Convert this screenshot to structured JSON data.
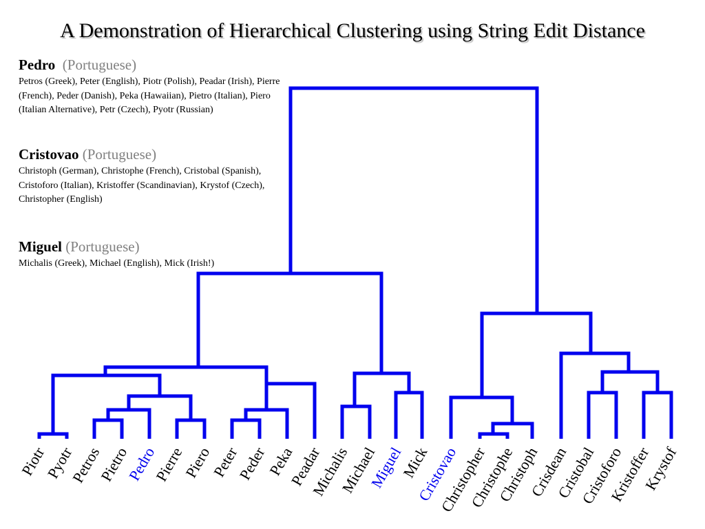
{
  "title": "A Demonstration of Hierarchical Clustering using String Edit Distance",
  "groups": [
    {
      "name": "Pedro",
      "language": "(Portuguese)",
      "variants": "Petros (Greek), Peter  (English), Piotr  (Polish), Peadar (Irish), Pierre (French), Peder  (Danish), Peka (Hawaiian), Pietro (Italian), Piero (Italian Alternative), Petr (Czech), Pyotr (Russian)"
    },
    {
      "name": "Cristovao",
      "language": "(Portuguese)",
      "variants": "Christoph (German), Christophe (French), Cristobal (Spanish), Cristoforo (Italian), Kristoffer (Scandinavian), Krystof (Czech), Christopher (English)"
    },
    {
      "name": "Miguel",
      "language": "(Portuguese)",
      "variants": "Michalis (Greek), Michael (English), Mick (Irish!)"
    }
  ],
  "leaves": [
    "Piotr",
    "Pyotr",
    "Petros",
    "Pietro",
    "Pedro",
    "Pierre",
    "Piero",
    "Peter",
    "Peder",
    "Peka",
    "Peadar",
    "Michalis",
    "Michael",
    "Miguel",
    "Mick",
    "Cristovao",
    "Christopher",
    "Christophe",
    "Christoph",
    "Crisdean",
    "Cristobal",
    "Cristoforo",
    "Kristoffer",
    "Krystof"
  ],
  "highlighted": [
    "Pedro",
    "Miguel",
    "Cristovao"
  ]
}
